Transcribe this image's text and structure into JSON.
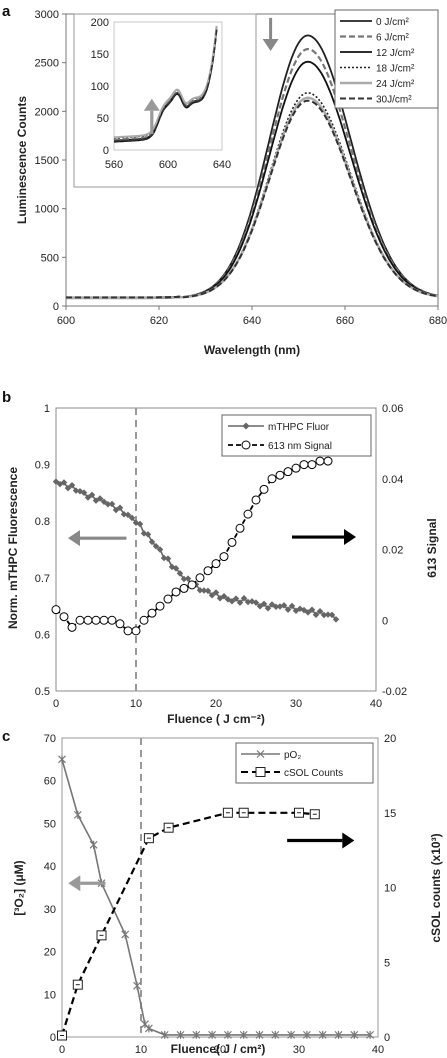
{
  "chart_data": [
    {
      "panel": "a",
      "type": "line",
      "xlabel": "Wavelength (nm)",
      "ylabel": "Luminescence Counts",
      "xlim": [
        600,
        680
      ],
      "ylim": [
        0,
        3000
      ],
      "xticks": [
        600,
        620,
        640,
        660,
        680
      ],
      "yticks": [
        0,
        500,
        1000,
        1500,
        2000,
        2500,
        3000
      ],
      "legend_position": "top-right",
      "series": [
        {
          "name": "0 J/cm²",
          "peak": 2780,
          "color": "#222222",
          "dash": "",
          "width": 1.8
        },
        {
          "name": "6 J/cm²",
          "peak": 2640,
          "color": "#777777",
          "dash": "6,3",
          "width": 2.2
        },
        {
          "name": "12 J/cm²",
          "peak": 2510,
          "color": "#111111",
          "dash": "",
          "width": 1.8
        },
        {
          "name": "18 J/cm²",
          "peak": 2190,
          "color": "#222222",
          "dash": "2,2",
          "width": 1.6
        },
        {
          "name": "24 J/cm²",
          "peak": 2140,
          "color": "#aaaaaa",
          "dash": "",
          "width": 2.4
        },
        {
          "name": "30J/cm²",
          "peak": 2110,
          "color": "#333333",
          "dash": "6,3",
          "width": 2.0
        }
      ],
      "peak_wavelength": 652,
      "baseline": 80,
      "annotation": {
        "arrow": "down",
        "color": "#888888",
        "x": 644,
        "y_from": 2960,
        "y_to": 2620
      },
      "inset": {
        "xlim": [
          560,
          650
        ],
        "ylim": [
          0,
          200
        ],
        "xticks": [
          560,
          600,
          640
        ],
        "yticks": [
          0,
          50,
          100,
          150,
          200
        ],
        "arrow": {
          "direction": "up",
          "color": "#999999",
          "x": 588,
          "y_from": 25,
          "y_to": 80
        }
      }
    },
    {
      "panel": "b",
      "type": "line",
      "xlabel": "Fluence ( J cm⁻²)",
      "ylabel": "Norm. mTHPC Fluorescence",
      "y2label": "613 Signal",
      "xlim": [
        0,
        40
      ],
      "ylim": [
        0.5,
        1
      ],
      "y2lim": [
        -0.02,
        0.06
      ],
      "xticks": [
        0,
        10,
        20,
        30,
        40
      ],
      "yticks": [
        0.5,
        0.6,
        0.7,
        0.8,
        0.9,
        1
      ],
      "y2ticks": [
        -0.02,
        0,
        0.02,
        0.04,
        0.06
      ],
      "ytick_labels": [
        "0.5",
        "0.6",
        "0.7",
        "0.8",
        "0.9",
        "1"
      ],
      "y2tick_labels": [
        "-0.02",
        "0",
        "0.02",
        "0.04",
        "0.06"
      ],
      "legend_position": "top-right",
      "vline": 10,
      "series": [
        {
          "name": "mTHPC Fluor",
          "axis": "left",
          "x": [
            0,
            2,
            4,
            6,
            8,
            10,
            12,
            14,
            16,
            18,
            20,
            22,
            24,
            26,
            28,
            30,
            32,
            34,
            35
          ],
          "y": [
            0.87,
            0.86,
            0.845,
            0.835,
            0.82,
            0.8,
            0.765,
            0.73,
            0.7,
            0.68,
            0.67,
            0.66,
            0.66,
            0.65,
            0.65,
            0.645,
            0.64,
            0.635,
            0.63
          ]
        },
        {
          "name": "613 nm Signal",
          "axis": "right",
          "x": [
            0,
            1,
            2,
            3,
            4,
            5,
            6,
            7,
            8,
            9,
            10,
            11,
            12,
            13,
            14,
            15,
            16,
            17,
            18,
            19,
            20,
            21,
            22,
            23,
            24,
            25,
            26,
            27,
            28,
            29,
            30,
            31,
            32,
            33,
            34,
            35
          ],
          "y": [
            0.003,
            0.001,
            -0.002,
            0.0,
            0.0,
            0.0,
            0.0,
            0.0,
            -0.001,
            -0.003,
            -0.003,
            0.0,
            0.002,
            0.004,
            0.006,
            0.008,
            0.009,
            0.01,
            0.012,
            0.014,
            0.016,
            0.018,
            0.022,
            0.026,
            0.03,
            0.034,
            0.037,
            0.04,
            0.041,
            0.042,
            0.043,
            0.044,
            0.044,
            0.045,
            0.045,
            0.049
          ]
        }
      ],
      "arrows": [
        {
          "direction": "left",
          "color": "#888888",
          "x_from": 8.8,
          "x_to": 1.5,
          "y": 0.77
        },
        {
          "direction": "right",
          "color": "#000000",
          "x_from": 29.5,
          "x_to": 37.5,
          "y": 0.772
        }
      ]
    },
    {
      "panel": "c",
      "type": "line",
      "xlabel": "Fluence( J / cm²)",
      "ylabel": "[³O₂]  (μM)",
      "y2label": "cSOL counts (x10³)",
      "xlim": [
        0,
        40
      ],
      "ylim": [
        0,
        70
      ],
      "y2lim": [
        0,
        20
      ],
      "xticks": [
        0,
        10,
        20,
        30,
        40
      ],
      "yticks": [
        0,
        10,
        20,
        30,
        40,
        50,
        60,
        70
      ],
      "y2ticks": [
        0,
        5,
        10,
        15,
        20
      ],
      "legend_position": "top-right",
      "vline": 10,
      "series": [
        {
          "name": "pO₂",
          "axis": "left",
          "x": [
            0,
            2,
            4,
            5,
            8,
            9.5,
            10.5,
            11,
            13,
            15,
            17,
            19,
            21,
            23,
            25,
            27,
            29,
            31,
            33,
            35,
            37,
            39
          ],
          "y": [
            65,
            52,
            45,
            36,
            24,
            12,
            3,
            2,
            0.5,
            0.5,
            0.5,
            0.5,
            0.5,
            0.5,
            0.5,
            0.5,
            0.5,
            0.5,
            0.5,
            0.5,
            0.5,
            0.5
          ]
        },
        {
          "name": "cSOL Counts",
          "axis": "right",
          "x": [
            0,
            2,
            5,
            11,
            13.5,
            21,
            23,
            30,
            32
          ],
          "y": [
            0.1,
            3.5,
            6.8,
            13.3,
            14,
            15,
            15,
            15,
            14.9
          ]
        }
      ],
      "arrows": [
        {
          "direction": "left",
          "color": "#999999",
          "x_from": 5.5,
          "x_to": 0.8,
          "y": 36
        },
        {
          "direction": "right",
          "color": "#000000",
          "x_from": 28.5,
          "x_to": 37,
          "y": 46
        }
      ]
    }
  ]
}
